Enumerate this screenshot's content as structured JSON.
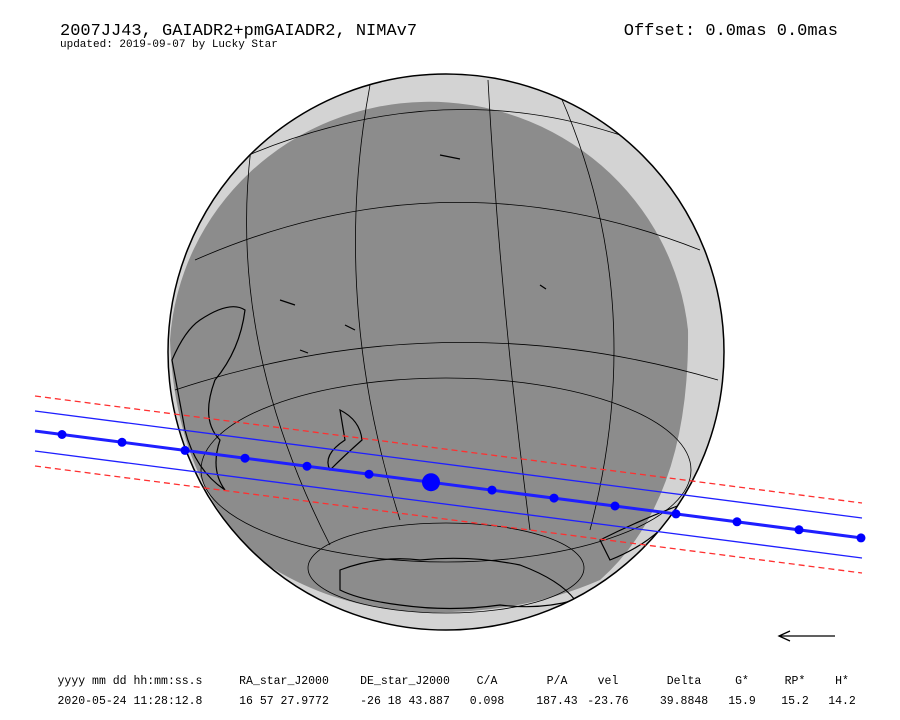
{
  "header": {
    "title": "2007JJ43, GAIADR2+pmGAIADR2, NIMAv7",
    "subtitle": "updated: 2019-09-07 by Lucky Star",
    "offset": "Offset: 0.0mas 0.0mas"
  },
  "table": {
    "columns": [
      "yyyy mm dd hh:mm:ss.s",
      "RA_star_J2000",
      "DE_star_J2000",
      "C/A",
      "P/A",
      "vel",
      "Delta",
      "G*",
      "RP*",
      "H*"
    ],
    "rows": [
      [
        "2020-05-24 11:28:12.8",
        "16 57 27.9772",
        "-26 18 43.887",
        "0.098",
        "187.43",
        "-23.76",
        "39.8848",
        "15.9",
        "15.2",
        "14.2"
      ]
    ]
  }
}
